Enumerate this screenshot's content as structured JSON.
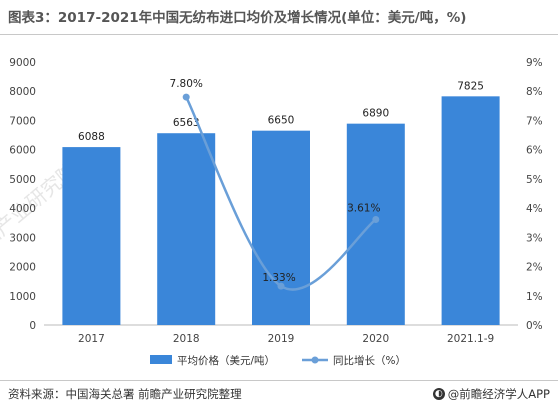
{
  "title": "图表3：2017-2021年中国无纺布进口均价及增长情况(单位：美元/吨，%)",
  "source": "资料来源：中国海关总署 前瞻产业研究院整理",
  "brand": "@前瞻经济学人APP",
  "watermark": "前瞻产业研究院",
  "chart_data": {
    "type": "bar",
    "categories": [
      "2017",
      "2018",
      "2019",
      "2020",
      "2021.1-9"
    ],
    "series": [
      {
        "name": "平均价格（美元/吨）",
        "type": "bar",
        "axis": "left",
        "values": [
          6088,
          6563,
          6650,
          6890,
          7825
        ],
        "labels": [
          "6088",
          "6563",
          "6650",
          "6890",
          "7825"
        ],
        "color": "#3a86d9"
      },
      {
        "name": "同比增长（%）",
        "type": "line",
        "axis": "right",
        "values": [
          null,
          7.8,
          1.33,
          3.61,
          null
        ],
        "labels": [
          "",
          "7.80%",
          "1.33%",
          "3.61%",
          ""
        ],
        "color": "#6a9fd8"
      }
    ],
    "y_left": {
      "min": 0,
      "max": 9000,
      "step": 1000,
      "ticks": [
        "0",
        "1000",
        "2000",
        "3000",
        "4000",
        "5000",
        "6000",
        "7000",
        "8000",
        "9000"
      ]
    },
    "y_right": {
      "min": 0,
      "max": 9,
      "step": 1,
      "ticks": [
        "0%",
        "1%",
        "2%",
        "3%",
        "4%",
        "5%",
        "6%",
        "7%",
        "8%",
        "9%"
      ]
    },
    "grid": false,
    "legend_position": "bottom"
  }
}
